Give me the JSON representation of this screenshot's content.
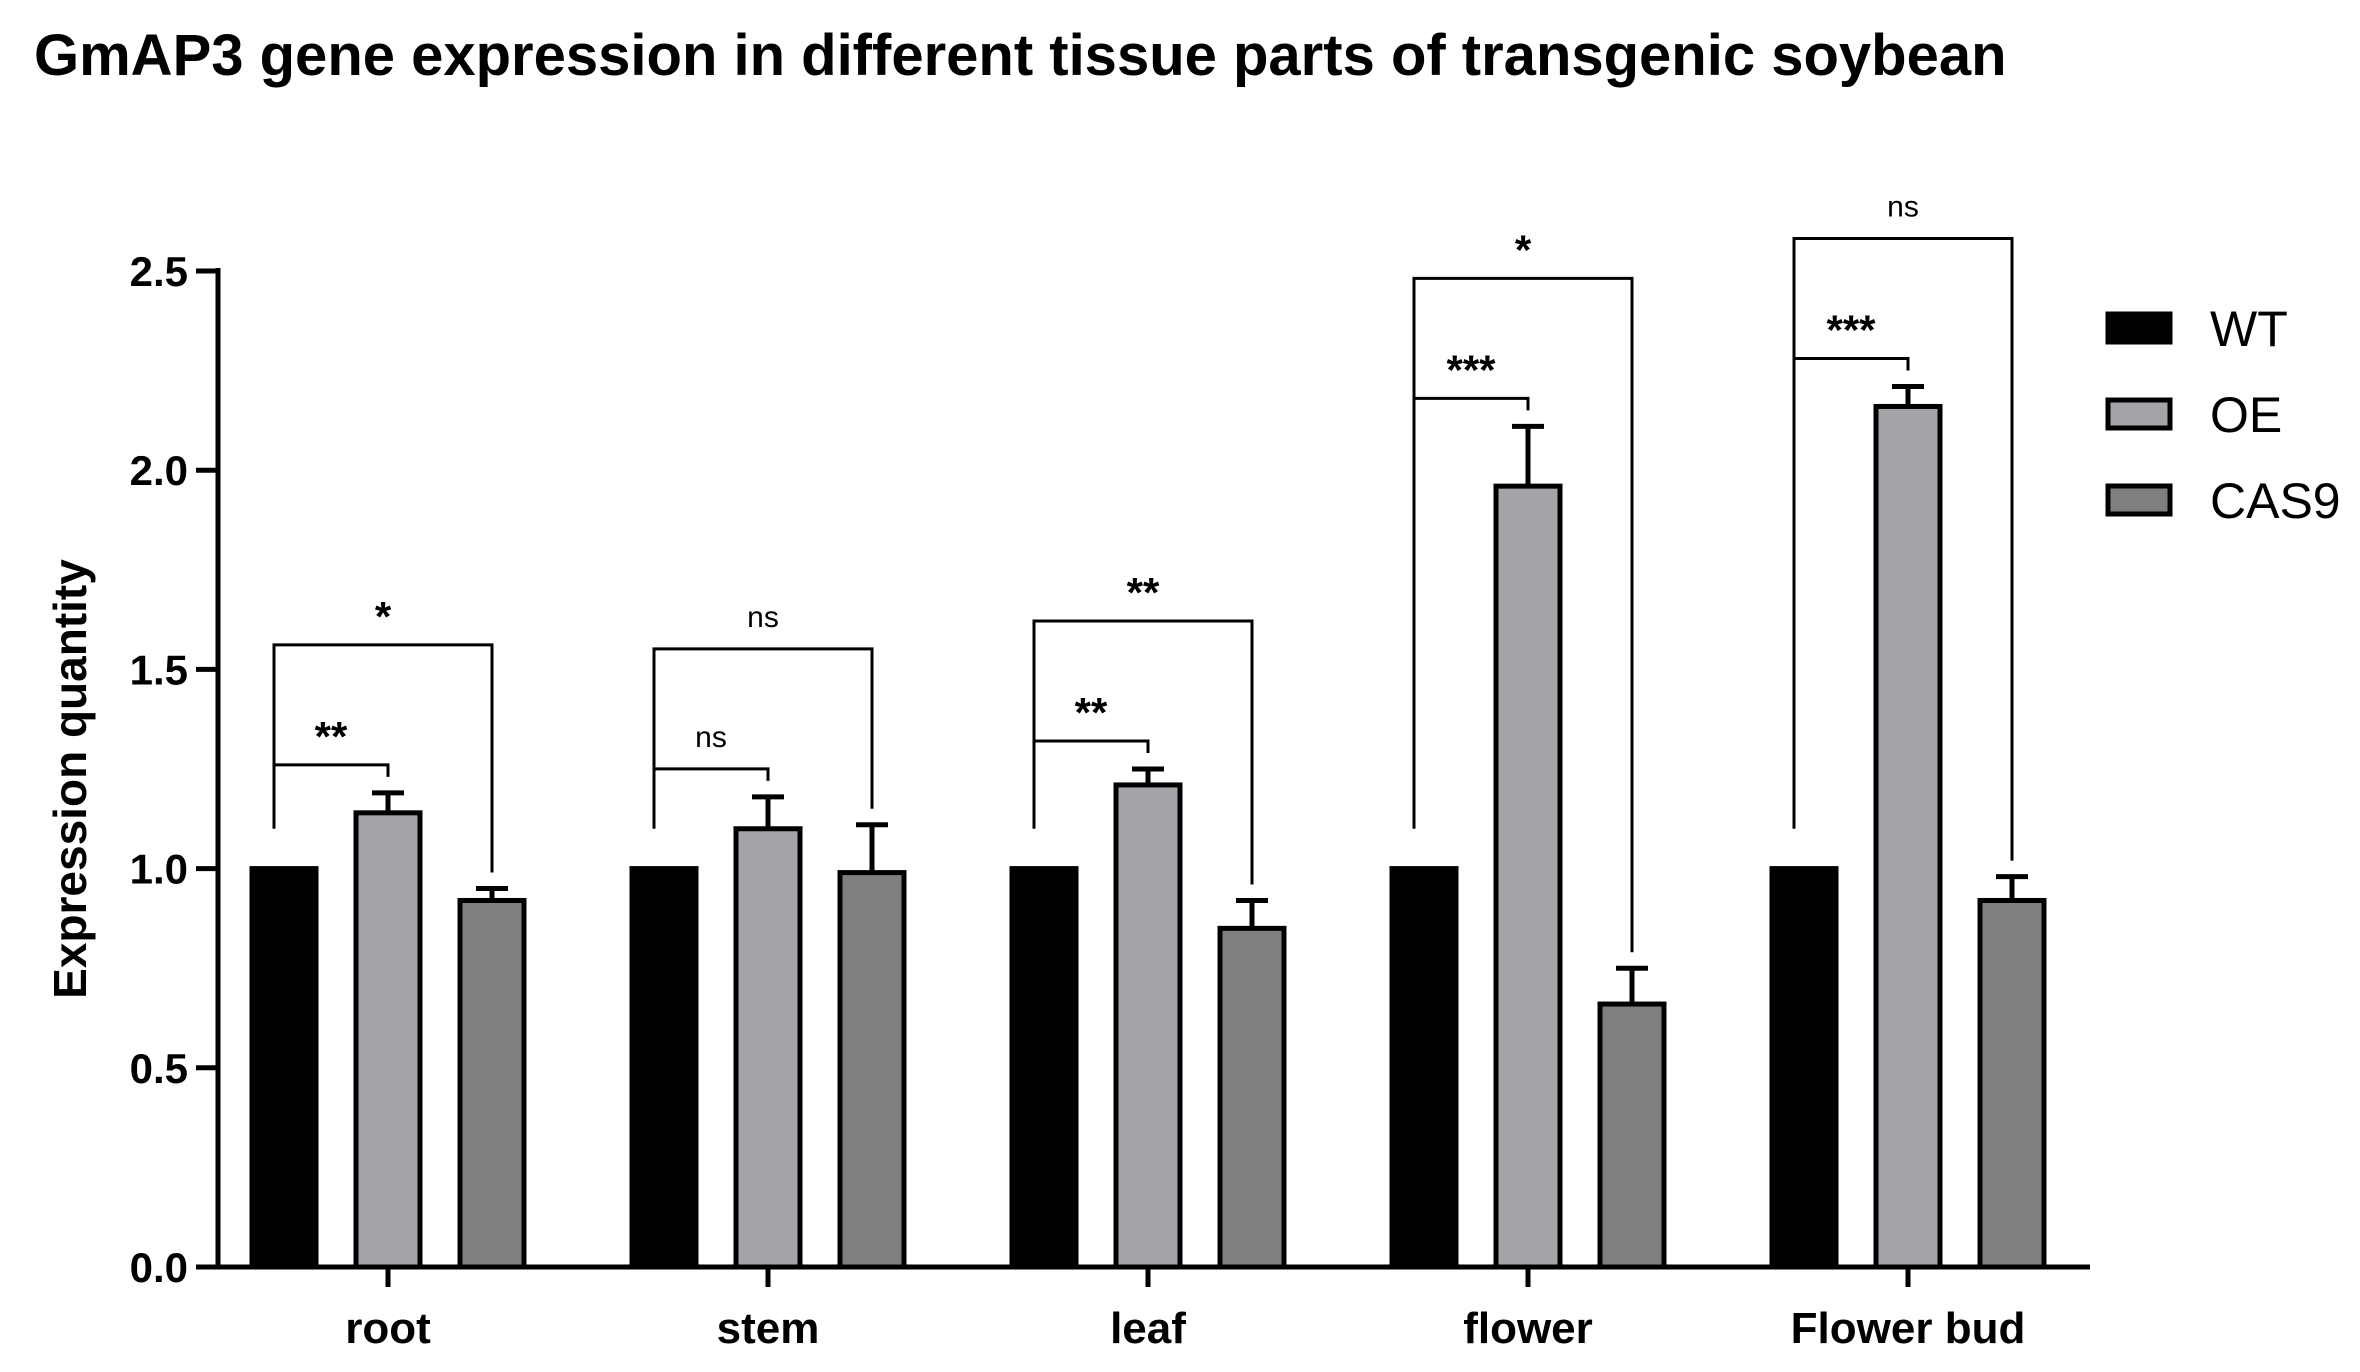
{
  "chart_data": {
    "type": "bar",
    "title": "GmAP3 gene expression in different tissue parts of transgenic soybean",
    "xlabel": "",
    "ylabel": "Expression quantity",
    "ylim": [
      0,
      2.5
    ],
    "yticks": [
      "0.0",
      "0.5",
      "1.0",
      "1.5",
      "2.0",
      "2.5"
    ],
    "categories": [
      "root",
      "stem",
      "leaf",
      "flower",
      "Flower bud"
    ],
    "series": [
      {
        "name": "WT",
        "values": [
          1.0,
          1.0,
          1.0,
          1.0,
          1.0
        ],
        "errors": [
          0,
          0,
          0,
          0,
          0
        ],
        "color": "#000000"
      },
      {
        "name": "OE",
        "values": [
          1.14,
          1.1,
          1.21,
          1.96,
          2.16
        ],
        "errors": [
          0.05,
          0.08,
          0.04,
          0.15,
          0.05
        ],
        "color": "#a4a4a8"
      },
      {
        "name": "CAS9",
        "values": [
          0.92,
          0.99,
          0.85,
          0.66,
          0.92
        ],
        "errors": [
          0.03,
          0.12,
          0.07,
          0.09,
          0.06
        ],
        "color": "#7f7f7f"
      }
    ],
    "significance": [
      {
        "category": 0,
        "from": "WT",
        "to": "OE",
        "label": "**"
      },
      {
        "category": 0,
        "from": "WT",
        "to": "CAS9",
        "label": "*"
      },
      {
        "category": 1,
        "from": "WT",
        "to": "OE",
        "label": "ns"
      },
      {
        "category": 1,
        "from": "WT",
        "to": "CAS9",
        "label": "ns"
      },
      {
        "category": 2,
        "from": "WT",
        "to": "OE",
        "label": "**"
      },
      {
        "category": 2,
        "from": "WT",
        "to": "CAS9",
        "label": "**"
      },
      {
        "category": 3,
        "from": "WT",
        "to": "OE",
        "label": "***"
      },
      {
        "category": 3,
        "from": "WT",
        "to": "CAS9",
        "label": "*"
      },
      {
        "category": 4,
        "from": "WT",
        "to": "OE",
        "label": "***"
      },
      {
        "category": 4,
        "from": "WT",
        "to": "CAS9",
        "label": "ns"
      }
    ],
    "legend": {
      "placement": "right"
    },
    "grid": false
  }
}
